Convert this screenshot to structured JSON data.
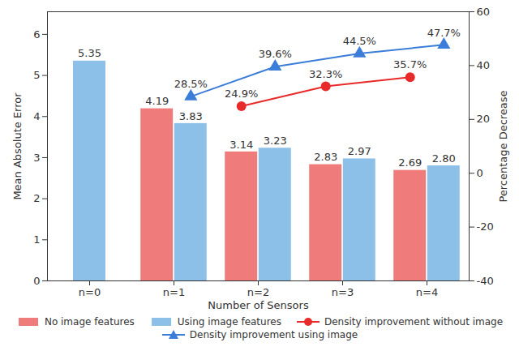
{
  "chart_data": {
    "type": "bar",
    "x_label": "Number of Sensors",
    "y_label": "Mean Absolute Error",
    "y2_label": "Percentage Decrease",
    "categories": [
      "n=0",
      "n=1",
      "n=2",
      "n=3",
      "n=4"
    ],
    "ylim": [
      0,
      6.55
    ],
    "yticks": [
      0,
      1,
      2,
      3,
      4,
      5,
      6
    ],
    "y2lim": [
      -40,
      60
    ],
    "y2ticks": [
      -40,
      -20,
      0,
      20,
      40,
      60
    ],
    "grid": false,
    "legend": "bottom",
    "data_labels": true,
    "series": [
      {
        "name": "No image features",
        "type": "bar",
        "color": "#f07b7b",
        "values": [
          null,
          4.19,
          3.14,
          2.83,
          2.69
        ],
        "value_labels": [
          null,
          "4.19",
          "3.14",
          "2.83",
          "2.69"
        ]
      },
      {
        "name": "Using image features",
        "type": "bar",
        "color": "#8cc0e8",
        "values": [
          5.35,
          3.83,
          3.23,
          2.97,
          2.8
        ],
        "value_labels": [
          "5.35",
          "3.83",
          "3.23",
          "2.97",
          "2.80"
        ]
      },
      {
        "name": "Density improvement without image",
        "type": "line",
        "axis": "y2",
        "color": "#e82a2a",
        "marker": "circle",
        "line_style": "solid",
        "values": [
          null,
          null,
          24.9,
          32.3,
          35.7
        ],
        "value_labels": [
          null,
          null,
          "24.9%",
          "32.3%",
          "35.7%"
        ]
      },
      {
        "name": "Density improvement using image",
        "type": "line",
        "axis": "y2",
        "color": "#3b7dd8",
        "marker": "triangle",
        "line_style": "solid",
        "values": [
          null,
          28.5,
          39.6,
          44.5,
          47.7
        ],
        "value_labels": [
          null,
          "28.5%",
          "39.6%",
          "44.5%",
          "47.7%"
        ]
      }
    ]
  }
}
